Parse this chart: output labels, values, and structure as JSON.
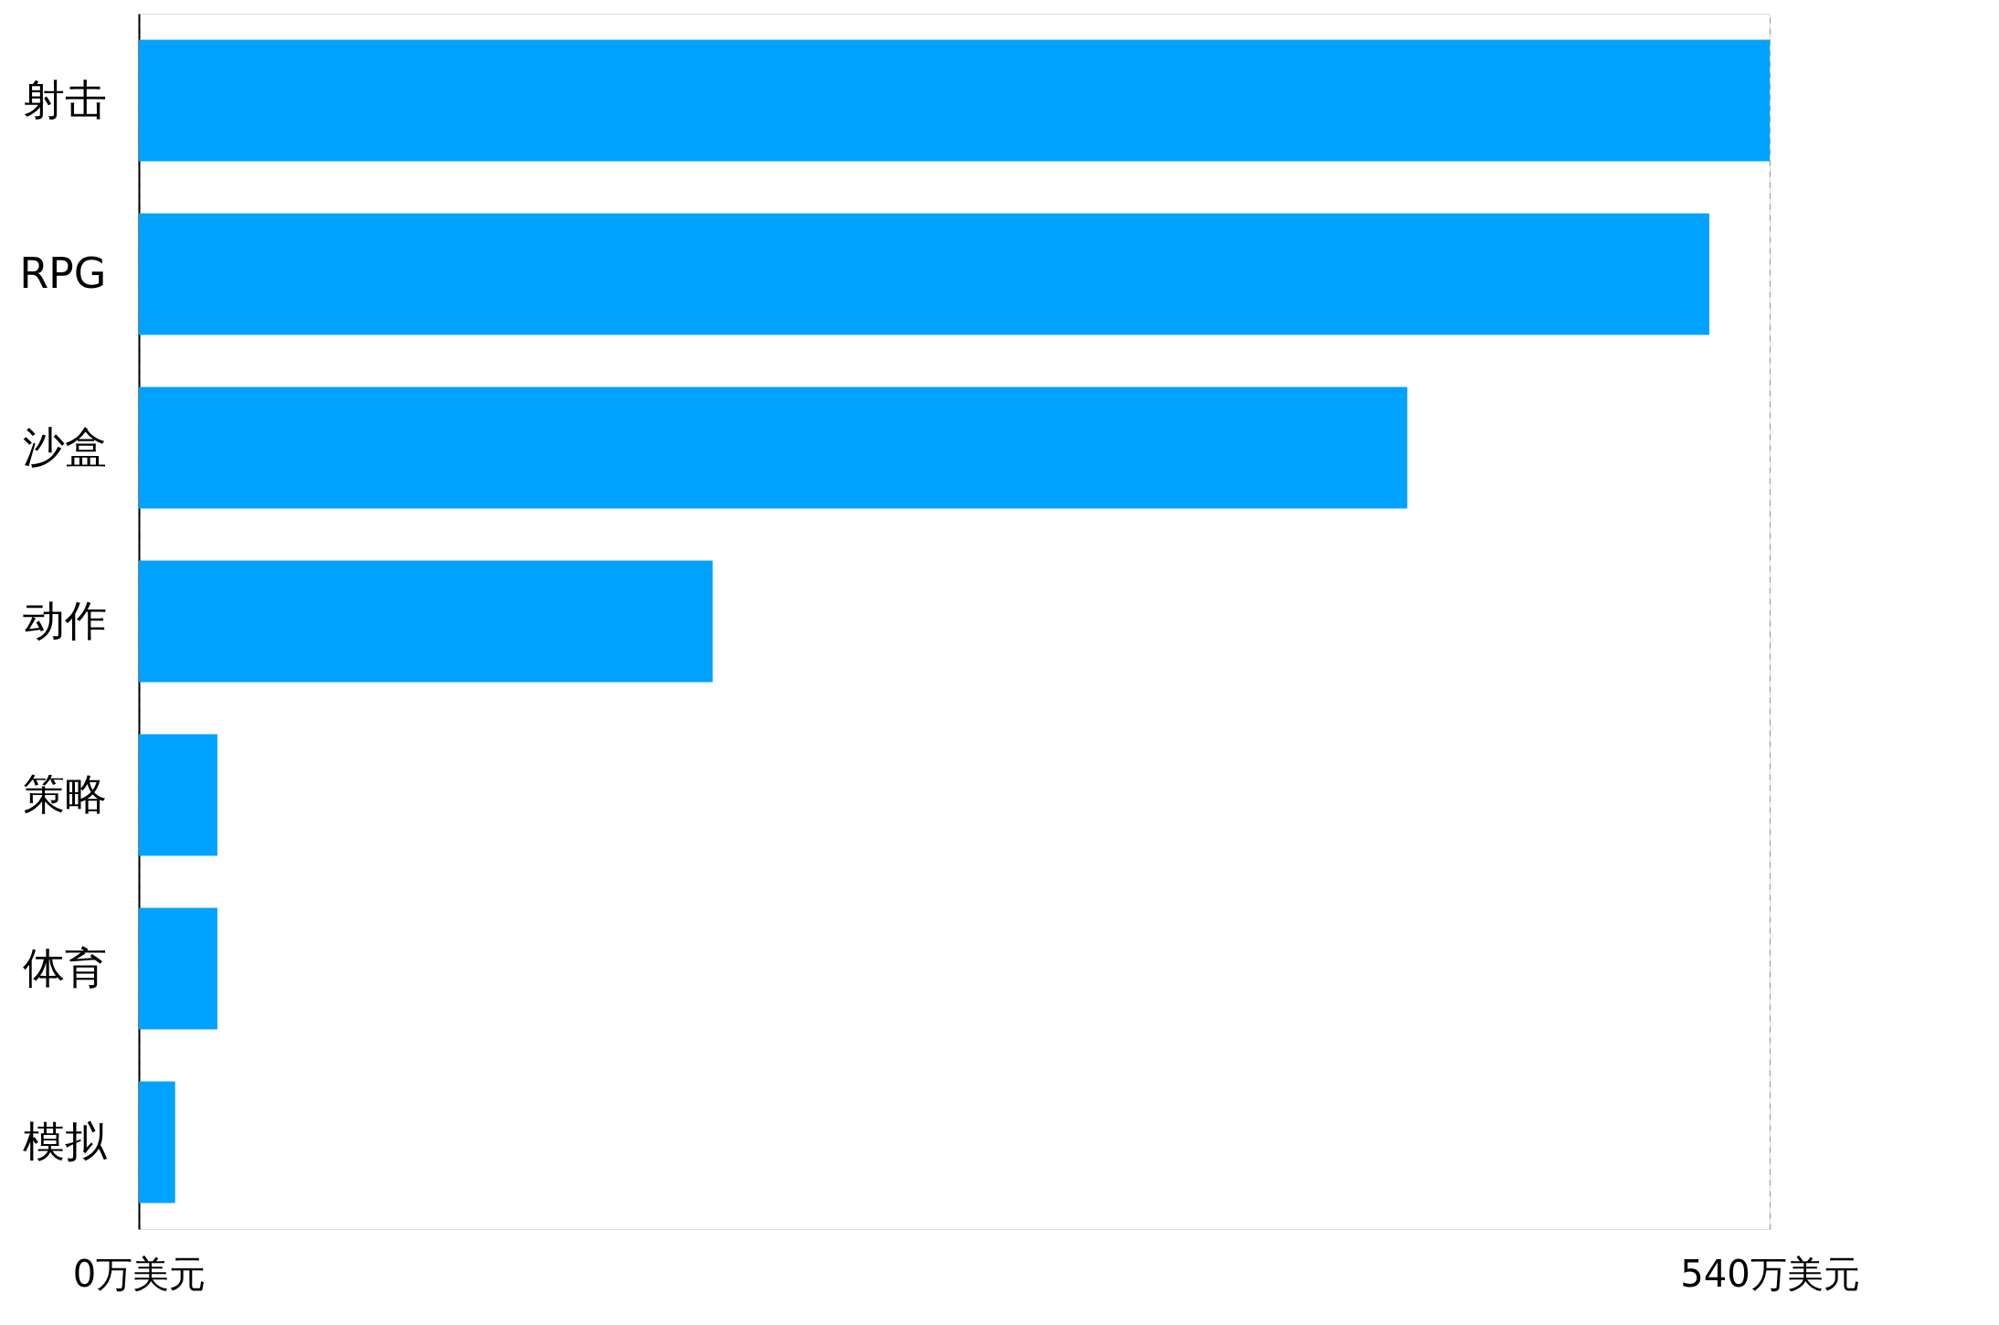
{
  "chart_data": {
    "type": "bar",
    "orientation": "horizontal",
    "categories": [
      "射击",
      "RPG",
      "沙盒",
      "动作",
      "策略",
      "体育",
      "模拟"
    ],
    "values": [
      540,
      520,
      420,
      190,
      26,
      26,
      12
    ],
    "color": "#00a2ff",
    "xlim": [
      0,
      540
    ],
    "xticks": [
      {
        "value": 0,
        "label": "0万美元"
      },
      {
        "value": 540,
        "label": "540万美元"
      }
    ],
    "grid": "x"
  }
}
